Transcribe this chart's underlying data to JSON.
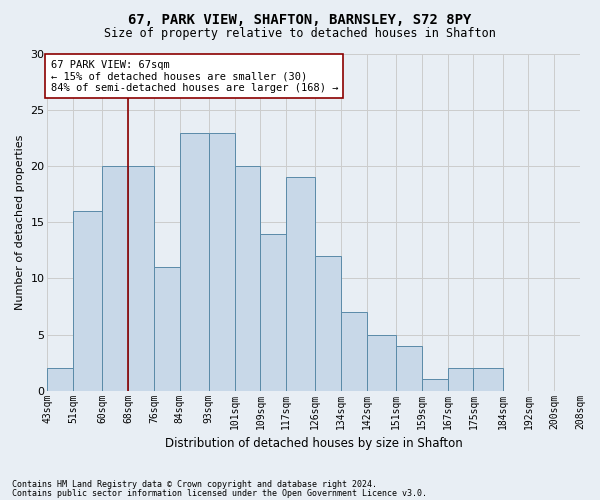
{
  "title1": "67, PARK VIEW, SHAFTON, BARNSLEY, S72 8PY",
  "title2": "Size of property relative to detached houses in Shafton",
  "xlabel": "Distribution of detached houses by size in Shafton",
  "ylabel": "Number of detached properties",
  "bin_labels": [
    "43sqm",
    "51sqm",
    "60sqm",
    "68sqm",
    "76sqm",
    "84sqm",
    "93sqm",
    "101sqm",
    "109sqm",
    "117sqm",
    "126sqm",
    "134sqm",
    "142sqm",
    "151sqm",
    "159sqm",
    "167sqm",
    "175sqm",
    "184sqm",
    "192sqm",
    "200sqm",
    "208sqm"
  ],
  "bar_heights": [
    2,
    16,
    20,
    20,
    11,
    23,
    23,
    20,
    14,
    19,
    12,
    7,
    5,
    4,
    1,
    2,
    2,
    0,
    0,
    0
  ],
  "bar_color": "#c8d8e8",
  "bar_edge_color": "#5a8aa8",
  "grid_color": "#cccccc",
  "vline_color": "#8b0000",
  "annotation_text": "67 PARK VIEW: 67sqm\n← 15% of detached houses are smaller (30)\n84% of semi-detached houses are larger (168) →",
  "annotation_box_color": "#ffffff",
  "annotation_box_edge": "#8b0000",
  "ylim": [
    0,
    30
  ],
  "yticks": [
    0,
    5,
    10,
    15,
    20,
    25,
    30
  ],
  "footer1": "Contains HM Land Registry data © Crown copyright and database right 2024.",
  "footer2": "Contains public sector information licensed under the Open Government Licence v3.0.",
  "bg_color": "#e8eef4"
}
